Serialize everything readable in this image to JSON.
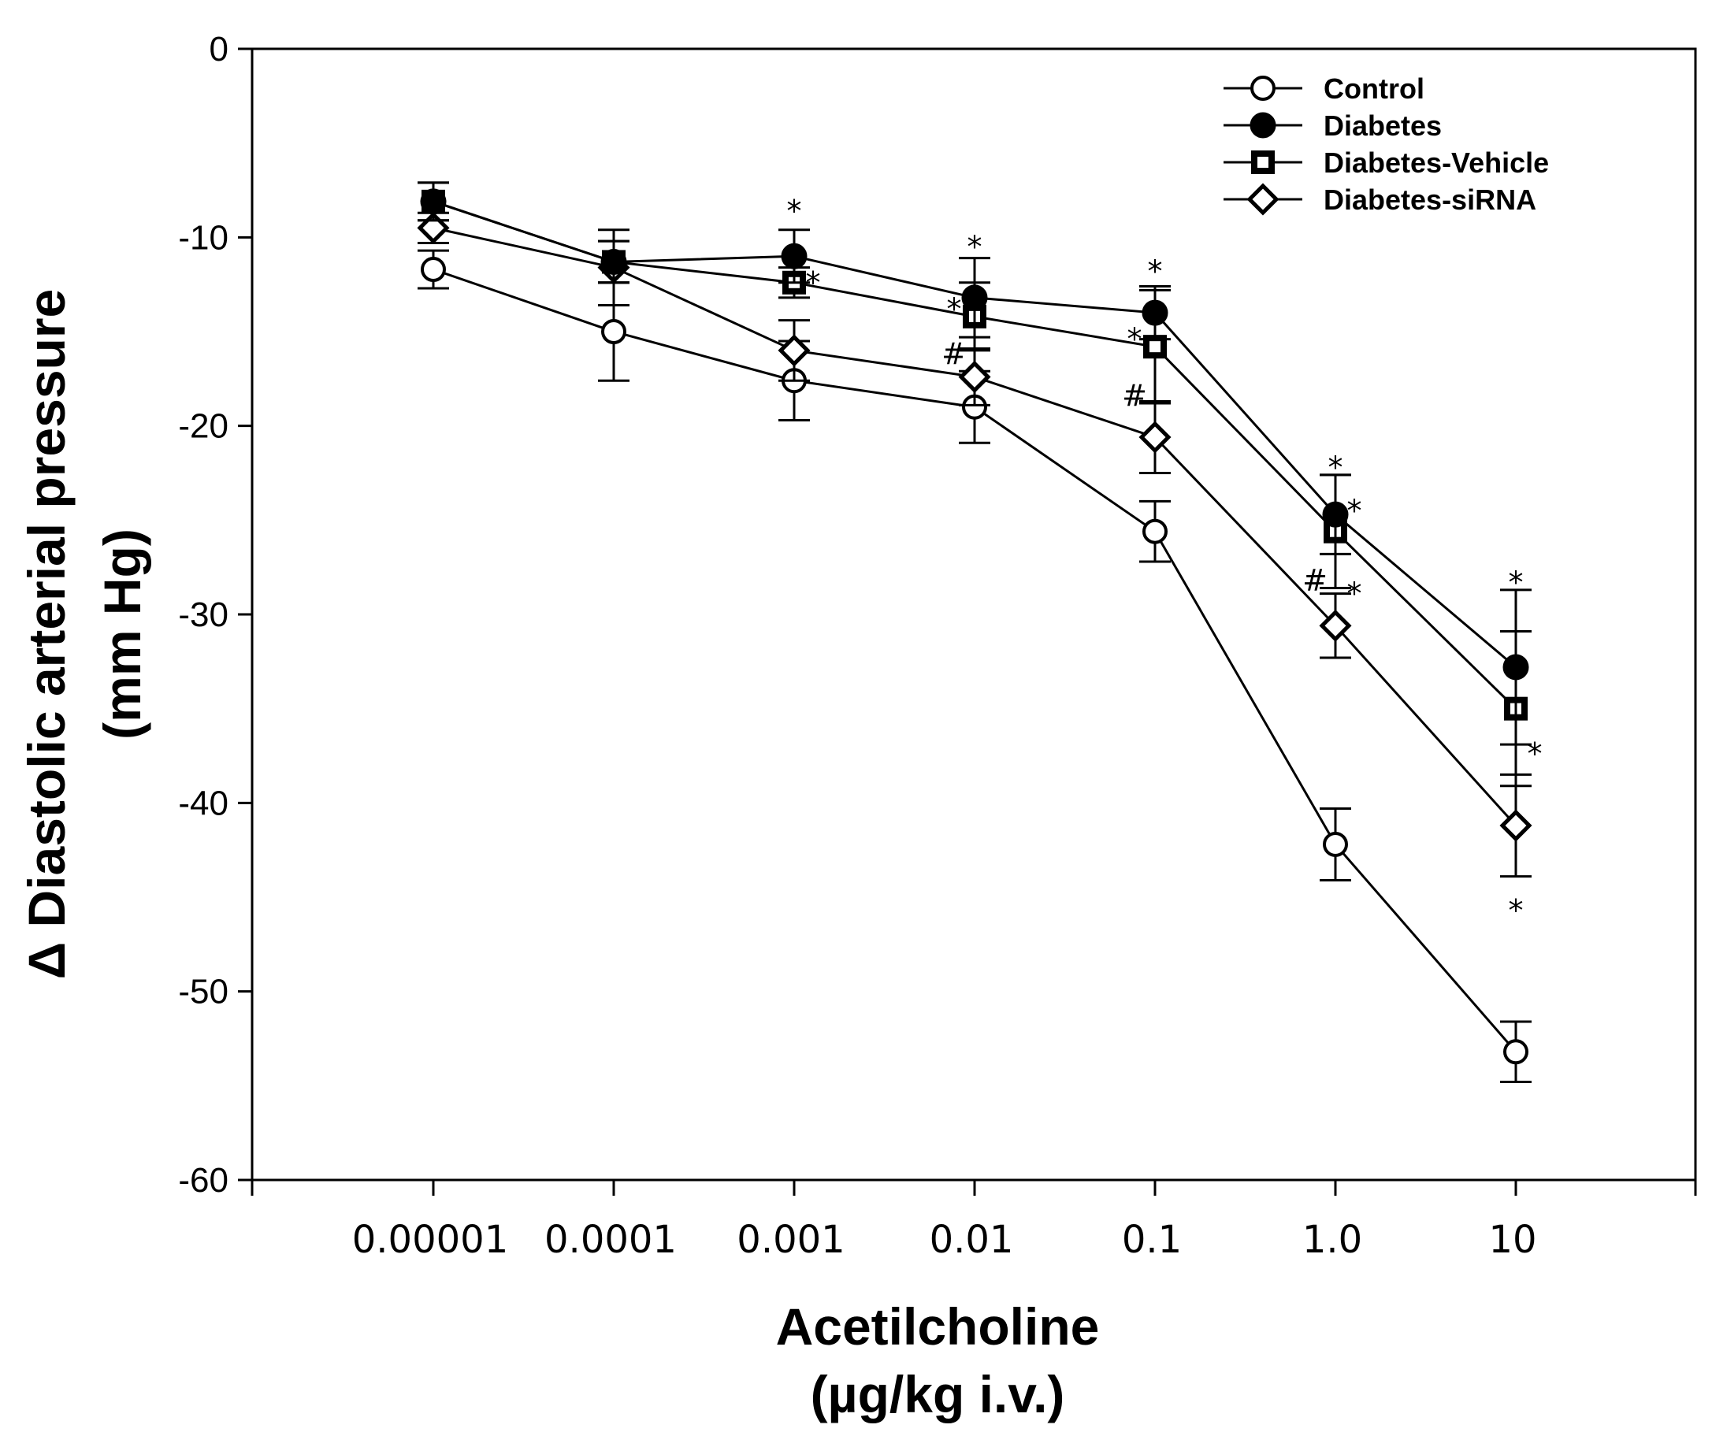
{
  "chart_data": {
    "type": "line",
    "ylabel_line1": "Δ Diastolic arterial pressure",
    "ylabel_line2": "(mm Hg)",
    "xlabel_line1": "Acetilcholine",
    "xlabel_line2": "(µg/kg i.v.)",
    "ylim": [
      -60,
      0
    ],
    "yticks": [
      0,
      -10,
      -20,
      -30,
      -40,
      -50,
      -60
    ],
    "x_categories": [
      "0.00001",
      "0.0001",
      "0.001",
      "0.01",
      "0.1",
      "1.0",
      "10"
    ],
    "series": [
      {
        "name": "Control",
        "marker": "circle-open",
        "values": [
          -11.7,
          -15.0,
          -17.6,
          -19.0,
          -25.6,
          -42.2,
          -53.2
        ],
        "errors": [
          1.0,
          2.6,
          2.1,
          1.9,
          1.6,
          1.9,
          1.6
        ]
      },
      {
        "name": "Diabetes",
        "marker": "circle-filled",
        "values": [
          -8.1,
          -11.3,
          -11.0,
          -13.2,
          -14.0,
          -24.7,
          -32.8
        ],
        "errors": [
          1.0,
          1.1,
          1.4,
          2.1,
          1.4,
          2.1,
          4.1
        ]
      },
      {
        "name": "Diabetes-Vehicle",
        "marker": "square",
        "values": [
          -8.1,
          -11.3,
          -12.4,
          -14.2,
          -15.8,
          -25.6,
          -35.0
        ],
        "errors": [
          1.0,
          1.1,
          0.8,
          1.8,
          3.0,
          3.0,
          4.1
        ]
      },
      {
        "name": "Diabetes-siRNA",
        "marker": "diamond",
        "values": [
          -9.5,
          -11.6,
          -16.0,
          -17.4,
          -20.6,
          -30.6,
          -41.2
        ],
        "errors": [
          0.8,
          2.0,
          1.6,
          1.5,
          1.9,
          1.7,
          2.7
        ]
      }
    ],
    "legend": {
      "position": "top-right",
      "entries": [
        "Control",
        "Diabetes",
        "Diabetes-Vehicle",
        "Diabetes-siRNA"
      ]
    },
    "annotations": [
      {
        "text": "*",
        "x_index": 2,
        "y": -8.6
      },
      {
        "text": "*",
        "x_index": 2,
        "y": -12.4,
        "side": "right"
      },
      {
        "text": "*",
        "x_index": 3,
        "y": -10.5
      },
      {
        "text": "*",
        "x_index": 3,
        "y": -13.8,
        "side": "left"
      },
      {
        "text": "#",
        "x_index": 3,
        "y": -16.2,
        "side": "left"
      },
      {
        "text": "*",
        "x_index": 4,
        "y": -11.8
      },
      {
        "text": "*",
        "x_index": 4,
        "y": -15.4,
        "side": "left"
      },
      {
        "text": "#",
        "x_index": 4,
        "y": -18.4,
        "side": "left"
      },
      {
        "text": "*",
        "x_index": 5,
        "y": -22.2
      },
      {
        "text": "*",
        "x_index": 5,
        "y": -24.5,
        "side": "right"
      },
      {
        "text": "#",
        "x_index": 5,
        "y": -28.2,
        "side": "left"
      },
      {
        "text": "*",
        "x_index": 5,
        "y": -28.9,
        "side": "right"
      },
      {
        "text": "*",
        "x_index": 6,
        "y": -28.3
      },
      {
        "text": "*",
        "x_index": 6,
        "y": -37.4,
        "side": "right"
      },
      {
        "text": "*",
        "x_index": 6,
        "y": -45.7
      }
    ],
    "colors": {
      "line": "#000000",
      "background": "#ffffff"
    }
  }
}
